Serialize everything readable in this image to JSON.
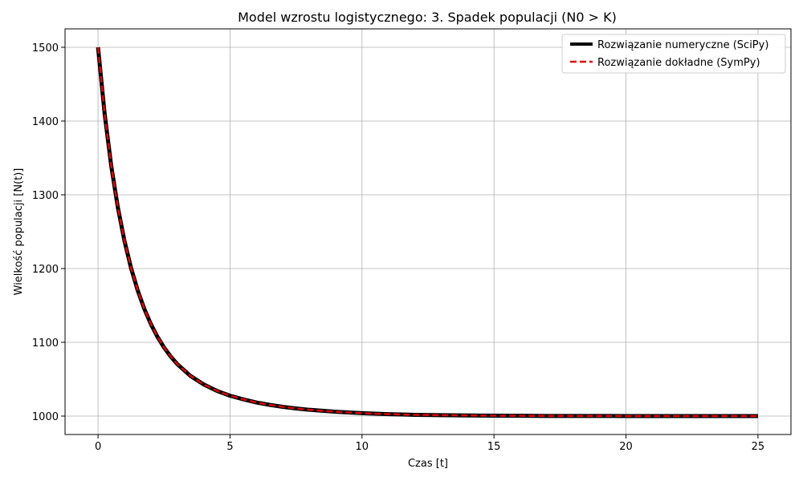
{
  "chart_data": {
    "type": "line",
    "title": "Model wzrostu logistycznego: 3. Spadek populacji (N0 > K)",
    "xlabel": "Czas [t]",
    "ylabel": "Wielkość populacji [N(t)]",
    "xlim": [
      -1.25,
      26.25
    ],
    "ylim": [
      975,
      1525
    ],
    "xticks": [
      0,
      5,
      10,
      15,
      20,
      25
    ],
    "yticks": [
      1000,
      1100,
      1200,
      1300,
      1400,
      1500
    ],
    "grid": true,
    "legend_position": "top-right",
    "x": [
      0,
      0.25,
      0.5,
      0.75,
      1,
      1.25,
      1.5,
      1.75,
      2,
      2.25,
      2.5,
      2.75,
      3,
      3.5,
      4,
      4.5,
      5,
      5.5,
      6,
      6.5,
      7,
      7.5,
      8,
      9,
      10,
      11,
      12,
      13,
      14,
      15,
      16,
      17,
      18,
      19,
      20,
      21,
      22,
      23,
      24,
      25
    ],
    "series": [
      {
        "name": "Rozwiązanie numeryczne (SciPy)",
        "color": "#000000",
        "style": "solid",
        "values": [
          1500,
          1409.8,
          1339.1,
          1282.9,
          1237.7,
          1200.8,
          1170.6,
          1145.6,
          1124.8,
          1107.5,
          1093.0,
          1080.8,
          1070.5,
          1054.5,
          1042.9,
          1034.2,
          1027.6,
          1022.7,
          1018.4,
          1015.2,
          1012.5,
          1010.3,
          1008.5,
          1005.8,
          1003.9,
          1002.6,
          1001.7,
          1001.2,
          1000.8,
          1000.5,
          1000.35,
          1000.2,
          1000.15,
          1000.1,
          1000.07,
          1000.05,
          1000.03,
          1000.02,
          1000.01,
          1000.01
        ]
      },
      {
        "name": "Rozwiązanie dokładne (SymPy)",
        "color": "#e00000",
        "style": "dashed",
        "values": [
          1500,
          1409.8,
          1339.1,
          1282.9,
          1237.7,
          1200.8,
          1170.6,
          1145.6,
          1124.8,
          1107.5,
          1093.0,
          1080.8,
          1070.5,
          1054.5,
          1042.9,
          1034.2,
          1027.6,
          1022.7,
          1018.4,
          1015.2,
          1012.5,
          1010.3,
          1008.5,
          1005.8,
          1003.9,
          1002.6,
          1001.7,
          1001.2,
          1000.8,
          1000.5,
          1000.35,
          1000.2,
          1000.15,
          1000.1,
          1000.07,
          1000.05,
          1000.03,
          1000.02,
          1000.01,
          1000.01
        ]
      }
    ]
  }
}
